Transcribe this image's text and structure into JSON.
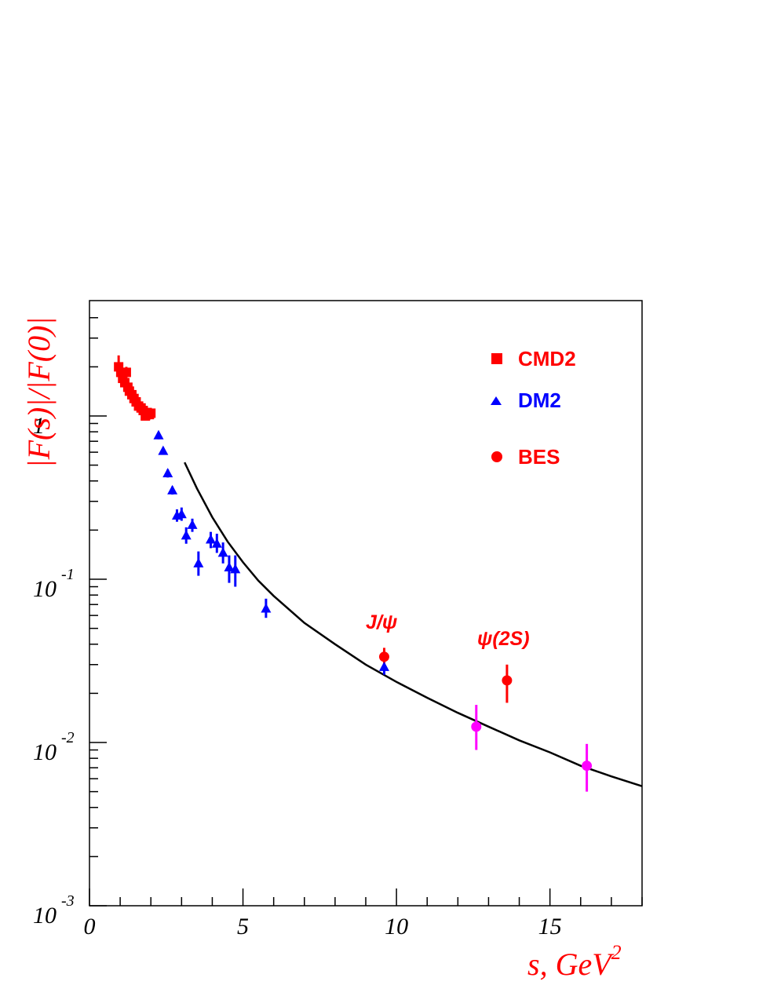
{
  "chart_data": {
    "type": "scatter",
    "title": "",
    "xlabel": "s, GeV",
    "xlabel_superscript": "2",
    "ylabel": "|F(s)|/|F(0)|",
    "xlim": [
      0,
      18
    ],
    "ylim": [
      0.001,
      5
    ],
    "yscale": "log",
    "grid": false,
    "legend_position": "top-right",
    "x_ticks": [
      {
        "value": 0,
        "label": "0"
      },
      {
        "value": 5,
        "label": "5"
      },
      {
        "value": 10,
        "label": "10"
      },
      {
        "value": 15,
        "label": "15"
      }
    ],
    "y_ticks": [
      {
        "value": 0.001,
        "base": "10",
        "exp": "-3"
      },
      {
        "value": 0.01,
        "base": "10",
        "exp": "-2"
      },
      {
        "value": 0.1,
        "base": "10",
        "exp": "-1"
      },
      {
        "value": 1,
        "base": "1",
        "exp": ""
      }
    ],
    "series": [
      {
        "name": "CMD2",
        "marker": "square",
        "color": "#ff0000",
        "points": [
          {
            "x": 0.95,
            "y": 2.0,
            "lo": 1.75,
            "hi": 2.35
          },
          {
            "x": 1.02,
            "y": 1.85,
            "lo": 1.65,
            "hi": 2.05
          },
          {
            "x": 1.08,
            "y": 1.7,
            "lo": 1.55,
            "hi": 1.85
          },
          {
            "x": 1.15,
            "y": 1.6,
            "lo": 1.47,
            "hi": 1.73
          },
          {
            "x": 1.2,
            "y": 1.85,
            "lo": 1.7,
            "hi": 2.0
          },
          {
            "x": 1.25,
            "y": 1.5,
            "lo": 1.4,
            "hi": 1.6
          },
          {
            "x": 1.3,
            "y": 1.42,
            "lo": 1.33,
            "hi": 1.52
          },
          {
            "x": 1.38,
            "y": 1.35,
            "lo": 1.27,
            "hi": 1.44
          },
          {
            "x": 1.45,
            "y": 1.28,
            "lo": 1.2,
            "hi": 1.36
          },
          {
            "x": 1.52,
            "y": 1.22,
            "lo": 1.14,
            "hi": 1.3
          },
          {
            "x": 1.6,
            "y": 1.15,
            "lo": 1.08,
            "hi": 1.22
          },
          {
            "x": 1.68,
            "y": 1.12,
            "lo": 1.05,
            "hi": 1.19
          },
          {
            "x": 1.75,
            "y": 1.08,
            "lo": 1.01,
            "hi": 1.15
          },
          {
            "x": 1.82,
            "y": 1.0,
            "lo": 0.94,
            "hi": 1.07
          },
          {
            "x": 1.88,
            "y": 1.05,
            "lo": 0.98,
            "hi": 1.12
          },
          {
            "x": 1.95,
            "y": 1.02,
            "lo": 0.95,
            "hi": 1.09
          },
          {
            "x": 2.0,
            "y": 1.04,
            "lo": 0.97,
            "hi": 1.11
          }
        ]
      },
      {
        "name": "DM2",
        "marker": "triangle",
        "color": "#0000ff",
        "points": [
          {
            "x": 2.25,
            "y": 0.76,
            "lo": 0.72,
            "hi": 0.8
          },
          {
            "x": 2.4,
            "y": 0.61,
            "lo": 0.58,
            "hi": 0.64
          },
          {
            "x": 2.55,
            "y": 0.445,
            "lo": 0.42,
            "hi": 0.47
          },
          {
            "x": 2.7,
            "y": 0.35,
            "lo": 0.33,
            "hi": 0.37
          },
          {
            "x": 2.85,
            "y": 0.245,
            "lo": 0.225,
            "hi": 0.268
          },
          {
            "x": 3.0,
            "y": 0.25,
            "lo": 0.228,
            "hi": 0.275
          },
          {
            "x": 3.15,
            "y": 0.185,
            "lo": 0.165,
            "hi": 0.208
          },
          {
            "x": 3.35,
            "y": 0.215,
            "lo": 0.195,
            "hi": 0.235
          },
          {
            "x": 3.55,
            "y": 0.125,
            "lo": 0.105,
            "hi": 0.148
          },
          {
            "x": 3.95,
            "y": 0.175,
            "lo": 0.155,
            "hi": 0.195
          },
          {
            "x": 4.15,
            "y": 0.165,
            "lo": 0.145,
            "hi": 0.19
          },
          {
            "x": 4.35,
            "y": 0.145,
            "lo": 0.125,
            "hi": 0.168
          },
          {
            "x": 4.55,
            "y": 0.118,
            "lo": 0.095,
            "hi": 0.14
          },
          {
            "x": 4.75,
            "y": 0.115,
            "lo": 0.09,
            "hi": 0.14
          },
          {
            "x": 5.75,
            "y": 0.066,
            "lo": 0.058,
            "hi": 0.076
          },
          {
            "x": 9.6,
            "y": 0.029,
            "lo": 0.026,
            "hi": 0.033
          }
        ]
      },
      {
        "name": "BES",
        "marker": "circle",
        "color": "#ff0000",
        "points": [
          {
            "x": 9.6,
            "y": 0.0335,
            "lo": 0.029,
            "hi": 0.038
          },
          {
            "x": 13.6,
            "y": 0.024,
            "lo": 0.0175,
            "hi": 0.03
          }
        ]
      },
      {
        "marker": "circle",
        "color": "#ff00ff",
        "points": [
          {
            "x": 12.6,
            "y": 0.0125,
            "lo": 0.009,
            "hi": 0.017
          },
          {
            "x": 16.2,
            "y": 0.0072,
            "lo": 0.005,
            "hi": 0.0098
          }
        ]
      }
    ],
    "curve": {
      "color": "#000000",
      "points": [
        {
          "x": 3.1,
          "y": 0.52
        },
        {
          "x": 3.5,
          "y": 0.36
        },
        {
          "x": 4.0,
          "y": 0.24
        },
        {
          "x": 4.5,
          "y": 0.17
        },
        {
          "x": 5.0,
          "y": 0.127
        },
        {
          "x": 5.5,
          "y": 0.098
        },
        {
          "x": 6.0,
          "y": 0.079
        },
        {
          "x": 7.0,
          "y": 0.054
        },
        {
          "x": 8.0,
          "y": 0.04
        },
        {
          "x": 9.0,
          "y": 0.03
        },
        {
          "x": 10.0,
          "y": 0.0235
        },
        {
          "x": 11.0,
          "y": 0.0188
        },
        {
          "x": 12.0,
          "y": 0.0152
        },
        {
          "x": 13.0,
          "y": 0.0125
        },
        {
          "x": 14.0,
          "y": 0.0103
        },
        {
          "x": 15.0,
          "y": 0.0087
        },
        {
          "x": 16.0,
          "y": 0.0072
        },
        {
          "x": 17.0,
          "y": 0.0062
        },
        {
          "x": 18.0,
          "y": 0.0054
        }
      ]
    },
    "annotations": [
      {
        "text": "J/ψ",
        "x": 9.6,
        "y": 0.036
      },
      {
        "text": "ψ(2S)",
        "x": 13.6,
        "y": 0.025
      }
    ]
  }
}
